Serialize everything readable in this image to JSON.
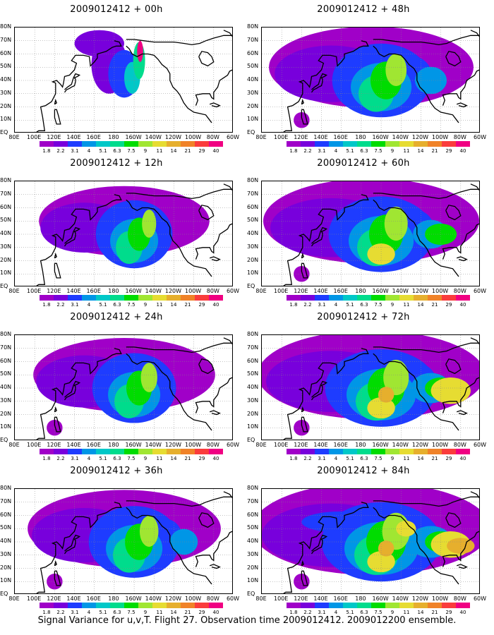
{
  "panels": [
    {
      "title": "2009012412 + 00h",
      "intensity": 0
    },
    {
      "title": "2009012412 + 12h",
      "intensity": 1
    },
    {
      "title": "2009012412 + 24h",
      "intensity": 2
    },
    {
      "title": "2009012412 + 36h",
      "intensity": 3
    },
    {
      "title": "2009012412 + 48h",
      "intensity": 4
    },
    {
      "title": "2009012412 + 60h",
      "intensity": 5
    },
    {
      "title": "2009012412 + 72h",
      "intensity": 6
    },
    {
      "title": "2009012412 + 84h",
      "intensity": 7
    }
  ],
  "lat_labels": [
    "80N",
    "70N",
    "60N",
    "50N",
    "40N",
    "30N",
    "20N",
    "10N",
    "EQ"
  ],
  "lon_labels": [
    "80E",
    "100E",
    "120E",
    "140E",
    "160E",
    "180",
    "160W",
    "140W",
    "120W",
    "100W",
    "80W",
    "60W"
  ],
  "colorbar": {
    "labels": [
      "1.8",
      "2.2",
      "3.1",
      "4",
      "5.1",
      "6.3",
      "7.5",
      "9",
      "11",
      "14",
      "21",
      "29",
      "40"
    ],
    "colors": [
      "#a000c8",
      "#7800dc",
      "#1e3cff",
      "#0096e6",
      "#00c8c8",
      "#00dc8c",
      "#00dc00",
      "#a0e632",
      "#e6dc32",
      "#e6af2d",
      "#f08228",
      "#fa3c3c",
      "#f00082"
    ]
  },
  "footer": "Signal Variance for u,v,T. Flight 27. Observation time 2009012412. 2009012200 ensemble."
}
